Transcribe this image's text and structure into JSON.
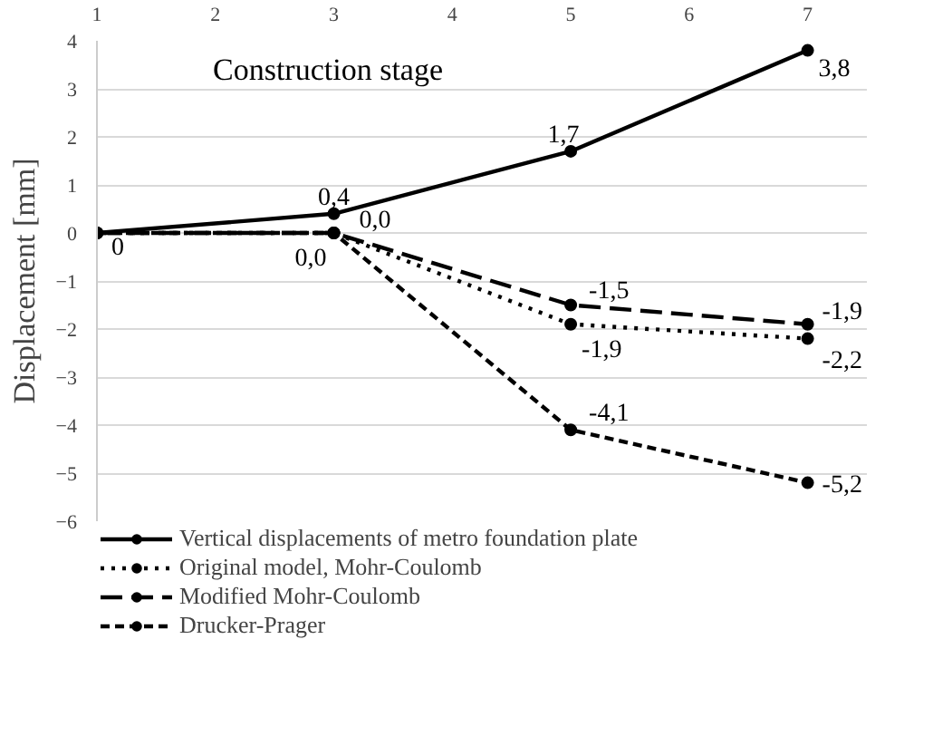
{
  "chart_data": {
    "type": "line",
    "xlabel": "Construction stage",
    "ylabel": "Displacement [mm]",
    "x": [
      1,
      3,
      5,
      7
    ],
    "xlim": [
      1,
      7.5
    ],
    "xticks": [
      1,
      2,
      3,
      4,
      5,
      6,
      7
    ],
    "ylim": [
      -6,
      4
    ],
    "yticks": [
      -6,
      -5,
      -4,
      -3,
      -2,
      -1,
      0,
      1,
      2,
      3,
      4
    ],
    "grid": "y",
    "legend": "bottom",
    "marker": "circle",
    "series": [
      {
        "name": "Vertical displacements of metro foundation plate",
        "color": "#000000",
        "line_style": "solid",
        "values": [
          0,
          0.4,
          1.7,
          3.8
        ],
        "value_labels": [
          "0",
          "0,4",
          "1,7",
          "3,8"
        ]
      },
      {
        "name": "Original model, Mohr-Coulomb",
        "color": "#000000",
        "line_style": "dotted",
        "values": [
          0,
          0,
          -1.9,
          -2.2
        ],
        "value_labels": [
          null,
          null,
          "-1,9",
          "-2,2"
        ]
      },
      {
        "name": "Modified Mohr-Coulomb",
        "color": "#000000",
        "line_style": "dashed",
        "values": [
          0,
          0,
          -1.5,
          -1.9
        ],
        "value_labels": [
          null,
          "0,0",
          "-1,5",
          "-1,9"
        ]
      },
      {
        "name": "Drucker-Prager",
        "color": "#000000",
        "line_style": "dashdot",
        "values": [
          0,
          0,
          -4.1,
          -5.2
        ],
        "value_labels": [
          null,
          "0,0",
          "-4,1",
          "-5,2"
        ]
      }
    ]
  }
}
